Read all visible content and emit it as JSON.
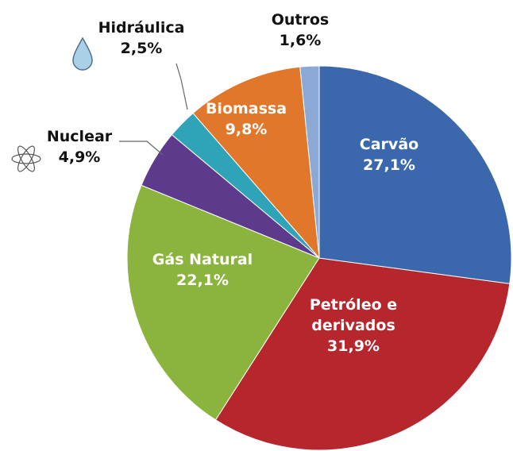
{
  "chart_data": {
    "type": "pie",
    "categories": [
      "Carvão",
      "Petróleo e derivados",
      "Gás Natural",
      "Nuclear",
      "Hidráulica",
      "Biomassa",
      "Outros"
    ],
    "values": [
      27.1,
      31.9,
      22.1,
      4.9,
      2.5,
      9.8,
      1.6
    ],
    "value_labels": [
      "27,1%",
      "31,9%",
      "22,1%",
      "4,9%",
      "2,5%",
      "9,8%",
      "1,6%"
    ],
    "colors": [
      "#3b68ad",
      "#b5262d",
      "#8bb43e",
      "#5e3a8c",
      "#2fa3b7",
      "#e1772a",
      "#8ca9d6"
    ]
  }
}
